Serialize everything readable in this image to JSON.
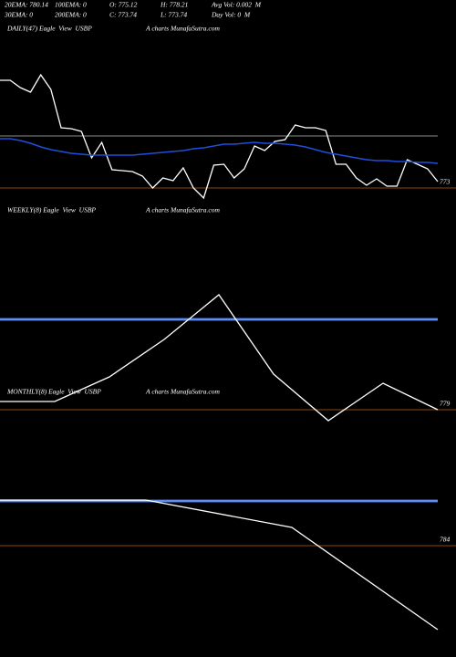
{
  "header": {
    "rows": [
      [
        "20EMA: 780.14",
        "100EMA: 0",
        "O: 775.12",
        "H: 778.21",
        "Avg Vol: 0.002  M"
      ],
      [
        "30EMA: 0",
        "200EMA: 0",
        "C: 773.74",
        "L: 773.74",
        "Day Vol: 0  M"
      ]
    ]
  },
  "chart_data": [
    {
      "type": "line",
      "title": "DAILY(47) Eagle  View  USBP",
      "subtitle": "A charts MunafaSutra.com",
      "ylim": [
        770,
        800
      ],
      "yticks": [
        773
      ],
      "levels": [
        {
          "value": 784.4,
          "color": "#8a8a8a"
        }
      ],
      "series": [
        {
          "color": "#ffffff",
          "values": [
            796.6,
            796.6,
            795,
            794,
            797.8,
            794.6,
            786.2,
            786,
            785.4,
            779.6,
            783,
            777,
            776.8,
            776.6,
            775.6,
            773,
            775.2,
            774.6,
            777.4,
            773,
            770.8,
            778,
            778.2,
            775.2,
            777.2,
            782.2,
            781.2,
            783.2,
            783.6,
            786.8,
            786.2,
            786.2,
            785.6,
            778.2,
            778.2,
            775.2,
            773.6,
            775,
            773.4,
            773.4,
            779.2,
            778.2,
            777.2,
            774.4
          ]
        },
        {
          "color": "#1f4fd8",
          "values": [
            783.8,
            783.8,
            783.4,
            782.8,
            782,
            781.4,
            781,
            780.6,
            780.4,
            780.2,
            780.2,
            780.2,
            780.2,
            780.2,
            780.4,
            780.6,
            780.8,
            781,
            781.2,
            781.6,
            781.8,
            782.2,
            782.6,
            782.6,
            782.8,
            783,
            782.8,
            782.8,
            782.6,
            782.4,
            782,
            781.4,
            780.8,
            780.4,
            780,
            779.6,
            779.2,
            779,
            779,
            778.8,
            778.8,
            778.6,
            778.6,
            778.4
          ]
        }
      ]
    },
    {
      "type": "line",
      "title": "WEEKLY(8) Eagle  View  USBP",
      "subtitle": "A charts MunafaSutra.com",
      "ylim": [
        777,
        799
      ],
      "yticks": [
        779
      ],
      "levels": [
        {
          "value": 788.9,
          "color": "#3a6fe0"
        }
      ],
      "series": [
        {
          "color": "#ffffff",
          "values": [
            779.9,
            779.9,
            782.6,
            786.7,
            791.6,
            782.9,
            777.8,
            781.9,
            779
          ]
        }
      ]
    },
    {
      "type": "line",
      "title": "MONTHLY(8) Eagle  View  USBP",
      "subtitle": "A charts MunafaSutra.com",
      "ylim": [
        774,
        794
      ],
      "yticks": [
        784
      ],
      "levels": [
        {
          "value": 788.9,
          "color": "#3a6fe0"
        }
      ],
      "series": [
        {
          "color": "#ffffff",
          "values": [
            789,
            789,
            786,
            774.8
          ]
        }
      ]
    }
  ]
}
